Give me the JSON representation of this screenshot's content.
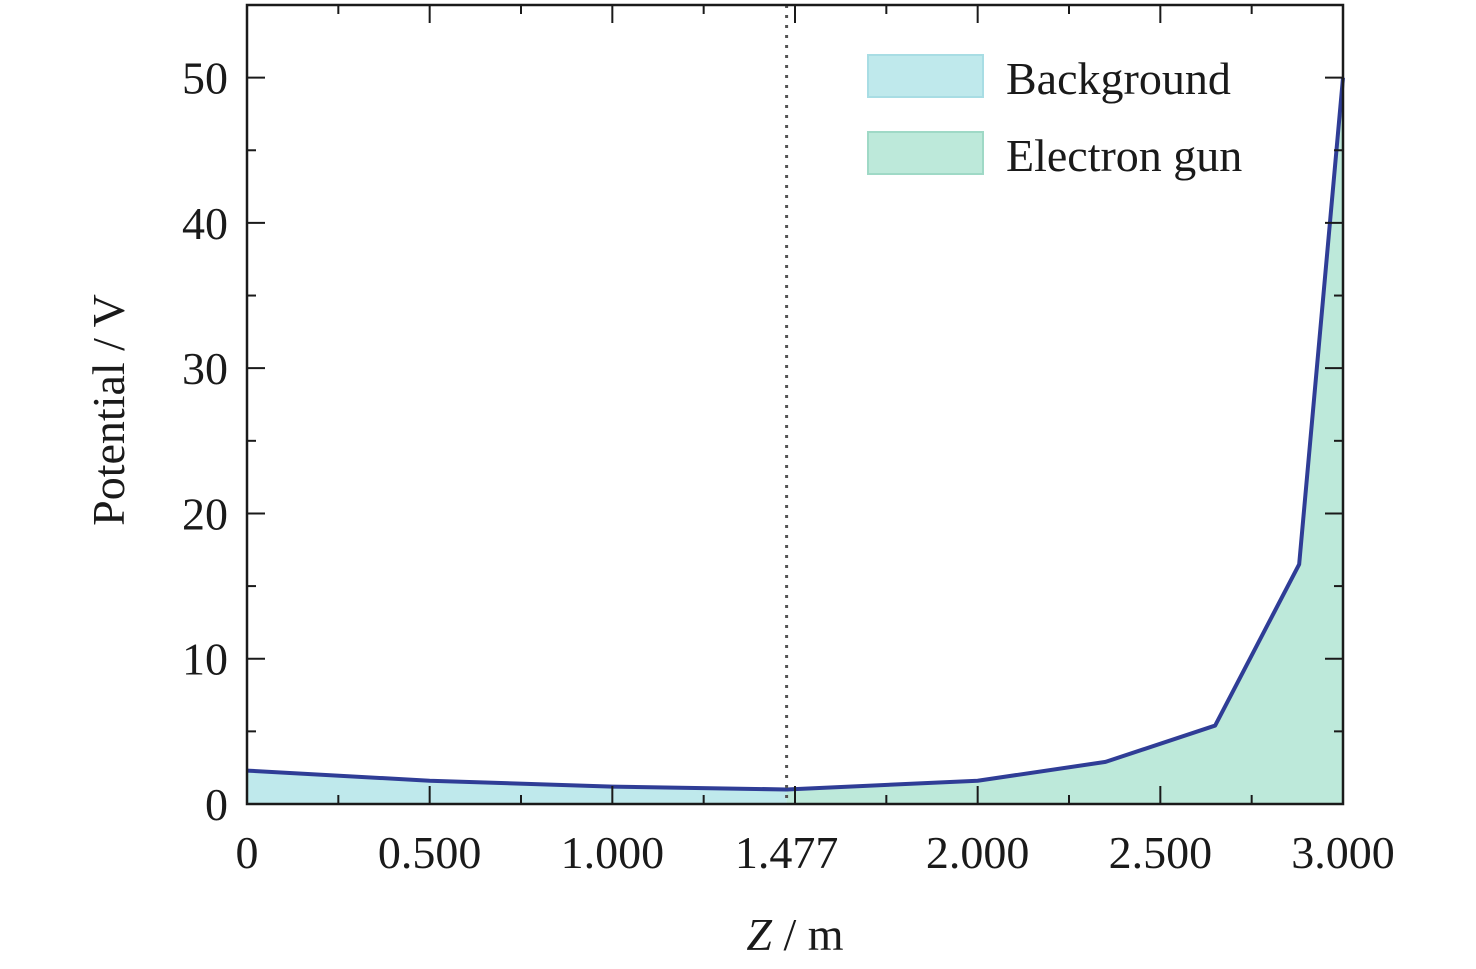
{
  "chart_data": {
    "type": "area",
    "xlabel_var": "Z",
    "xlabel_unit": " / m",
    "ylabel": "Potential / V",
    "xlim": [
      0,
      3.0
    ],
    "ylim": [
      0,
      55
    ],
    "x_ticks": [
      0,
      0.5,
      1.0,
      1.477,
      2.0,
      2.5,
      3.0
    ],
    "x_tick_labels": [
      "0",
      "0.500",
      "1.000",
      "1.477",
      "2.000",
      "2.500",
      "3.000"
    ],
    "y_ticks": [
      0,
      10,
      20,
      30,
      40,
      50
    ],
    "y_tick_labels": [
      "0",
      "10",
      "20",
      "30",
      "40",
      "50"
    ],
    "marker_line_x": 1.477,
    "grid": false,
    "legend_position": "top-right",
    "series": [
      {
        "name": "Background",
        "color": "#bfe9ec",
        "x_range": [
          0,
          1.477
        ]
      },
      {
        "name": "Electron gun",
        "color": "#bde9da",
        "x_range": [
          1.477,
          3.0
        ]
      }
    ],
    "curve": {
      "color": "#2f3d96",
      "x": [
        0,
        0.5,
        1.0,
        1.477,
        2.0,
        2.35,
        2.65,
        2.88,
        3.0
      ],
      "y": [
        2.3,
        1.6,
        1.2,
        1.0,
        1.6,
        2.9,
        5.4,
        16.5,
        50.0
      ]
    }
  }
}
